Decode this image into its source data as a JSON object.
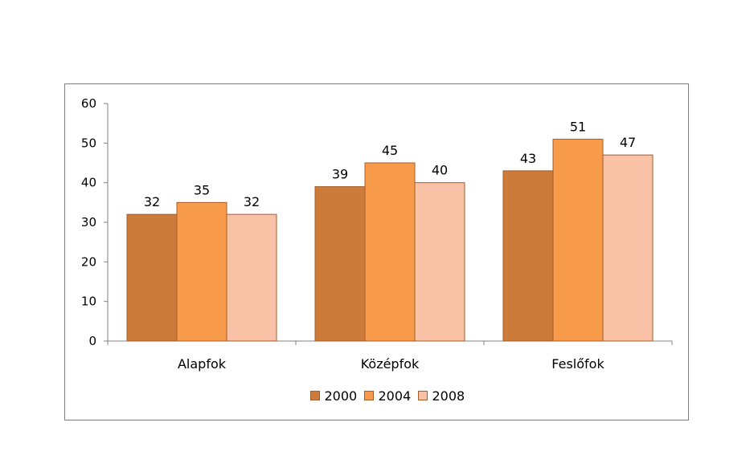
{
  "chart_data": {
    "type": "bar",
    "categories": [
      "Alapfok",
      "Középfok",
      "Feslőfok"
    ],
    "series": [
      {
        "name": "2000",
        "values": [
          32,
          39,
          43
        ],
        "color": "#cd7b3b"
      },
      {
        "name": "2004",
        "values": [
          35,
          45,
          51
        ],
        "color": "#f79a4a"
      },
      {
        "name": "2008",
        "values": [
          32,
          40,
          47
        ],
        "color": "#f9c1a6"
      }
    ],
    "bar_stroke": "#a35d28",
    "ylim": [
      0,
      60
    ],
    "yticks": [
      0,
      10,
      20,
      30,
      40,
      50,
      60
    ],
    "grid": false,
    "data_labels": true,
    "legend_position": "bottom",
    "title": "",
    "xlabel": "",
    "ylabel": ""
  }
}
